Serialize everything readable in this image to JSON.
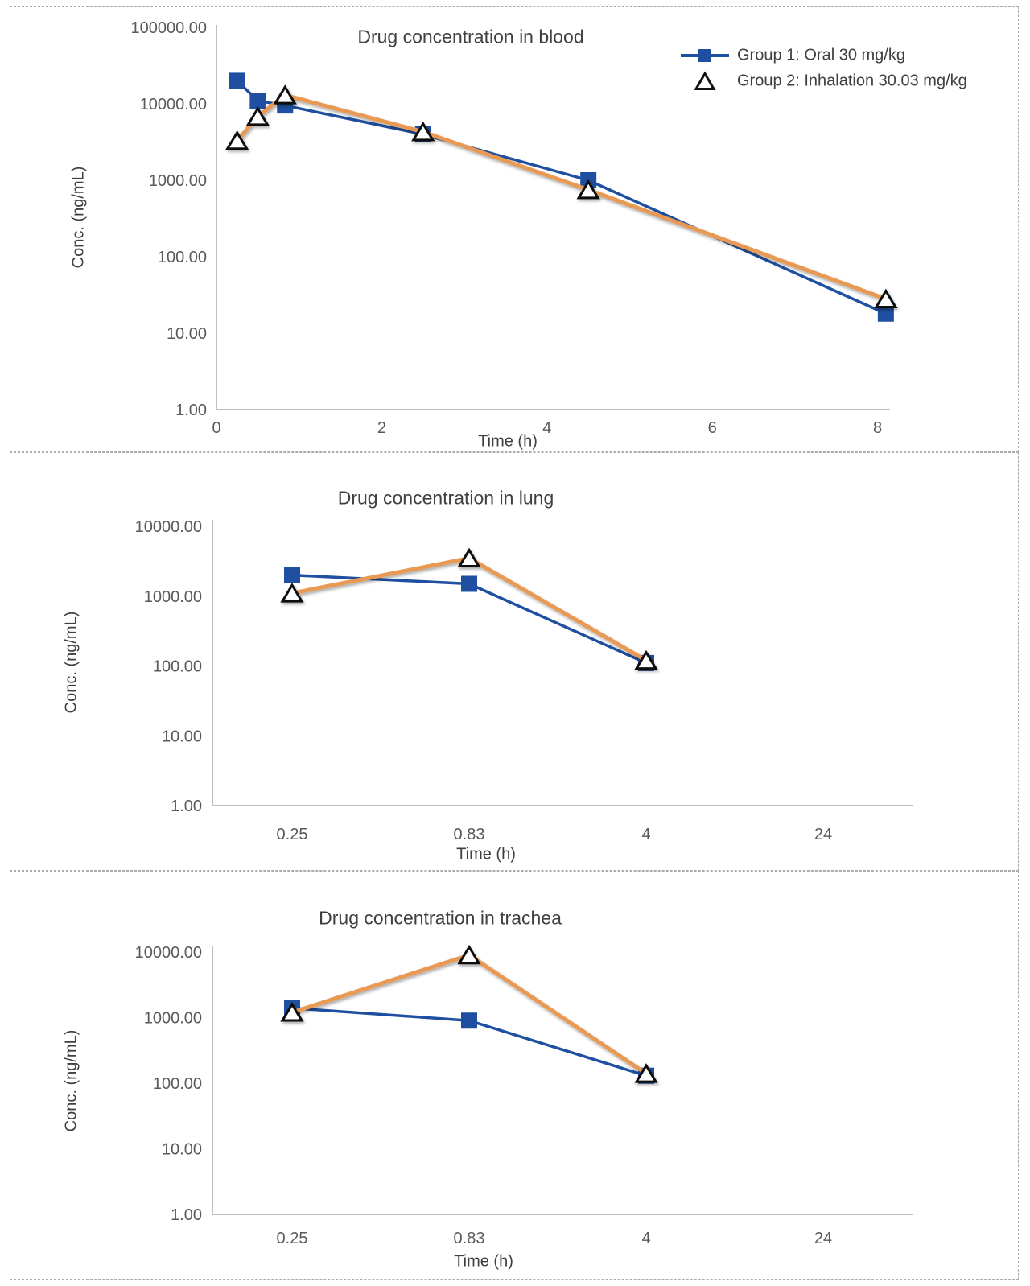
{
  "page": {
    "background": "#ffffff",
    "panel_border_color": "#ababab"
  },
  "colors": {
    "group1": "#1f4fa0",
    "group2": "#e89a55",
    "axis_line": "#bfbfbf",
    "tick_text": "#595959",
    "title_text": "#404040",
    "marker_stroke": "#111111",
    "marker_fill_open": "#ffffff"
  },
  "legend": {
    "position": "top-right-inside",
    "items": [
      {
        "label": "Group 1: Oral 30 mg/kg",
        "marker": "filled-square",
        "color_key": "group1"
      },
      {
        "label": "Group 2: Inhalation 30.03 mg/kg",
        "marker": "open-triangle",
        "color_key": "group2"
      }
    ]
  },
  "chart_data": [
    {
      "id": "blood",
      "type": "line",
      "title": "Drug concentration in blood",
      "xlabel": "Time (h)",
      "ylabel": "Conc. (ng/mL)",
      "grid": false,
      "x_axis": {
        "type": "linear",
        "ticks": [
          0,
          2,
          4,
          6,
          8
        ],
        "range": [
          0,
          8.15
        ]
      },
      "y_axis": {
        "type": "log",
        "range": [
          1,
          100000
        ],
        "tick_labels": [
          "100000.00",
          "10000.00",
          "1000.00",
          "100.00",
          "10.00",
          "1.00"
        ]
      },
      "x": [
        0.25,
        0.5,
        0.83,
        2.5,
        4.5,
        8.1
      ],
      "series": [
        {
          "name": "Group 1: Oral 30 mg/kg",
          "marker": "filled-square",
          "color_key": "group1",
          "values": [
            20000,
            11000,
            9500,
            4000,
            1000,
            18
          ]
        },
        {
          "name": "Group 2: Inhalation 30.03 mg/kg",
          "marker": "open-triangle",
          "color_key": "group2",
          "values": [
            3300,
            6800,
            13000,
            4300,
            750,
            28
          ]
        }
      ]
    },
    {
      "id": "lung",
      "type": "line",
      "title": "Drug concentration in lung",
      "xlabel": "Time (h)",
      "ylabel": "Conc. (ng/mL)",
      "grid": false,
      "x_axis": {
        "type": "category",
        "categories": [
          "0.25",
          "0.83",
          "4",
          "24"
        ]
      },
      "y_axis": {
        "type": "log",
        "range": [
          1,
          10000
        ],
        "tick_labels": [
          "10000.00",
          "1000.00",
          "100.00",
          "10.00",
          "1.00"
        ]
      },
      "series": [
        {
          "name": "Group 1: Oral 30 mg/kg",
          "marker": "filled-square",
          "color_key": "group1",
          "values": [
            2000,
            1500,
            110,
            null
          ]
        },
        {
          "name": "Group 2: Inhalation 30.03 mg/kg",
          "marker": "open-triangle",
          "color_key": "group2",
          "values": [
            1100,
            3500,
            120,
            null
          ]
        }
      ]
    },
    {
      "id": "trachea",
      "type": "line",
      "title": "Drug concentration in trachea",
      "xlabel": "Time (h)",
      "ylabel": "Conc. (ng/mL)",
      "grid": false,
      "x_axis": {
        "type": "category",
        "categories": [
          "0.25",
          "0.83",
          "4",
          "24"
        ]
      },
      "y_axis": {
        "type": "log",
        "range": [
          1,
          10000
        ],
        "tick_labels": [
          "10000.00",
          "1000.00",
          "100.00",
          "10.00",
          "1.00"
        ]
      },
      "series": [
        {
          "name": "Group 1: Oral 30 mg/kg",
          "marker": "filled-square",
          "color_key": "group1",
          "values": [
            1400,
            900,
            130,
            null
          ]
        },
        {
          "name": "Group 2: Inhalation 30.03 mg/kg",
          "marker": "open-triangle",
          "color_key": "group2",
          "values": [
            1200,
            9000,
            140,
            null
          ]
        }
      ]
    }
  ]
}
